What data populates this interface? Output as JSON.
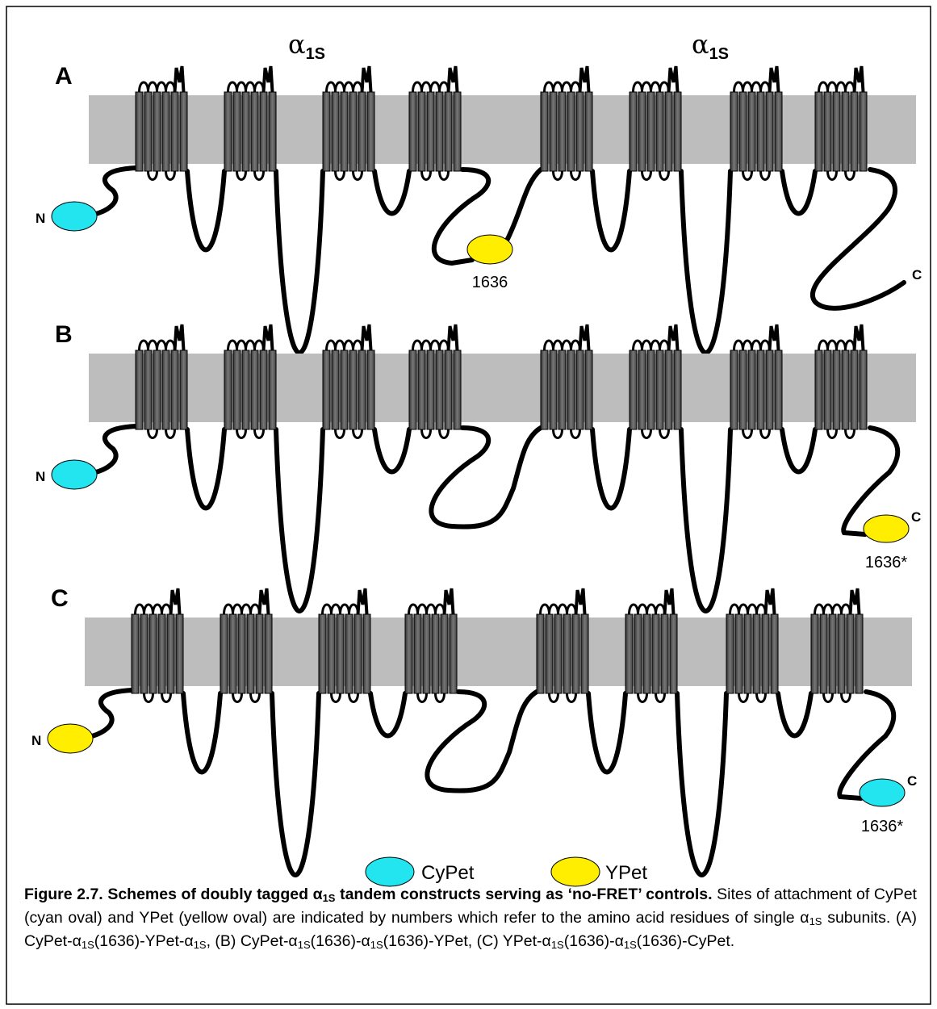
{
  "header": {
    "subunits": [
      {
        "symbol": "α",
        "subscript": "1S"
      },
      {
        "symbol": "α",
        "subscript": "1S"
      }
    ]
  },
  "panels": [
    {
      "letter": "A",
      "n_label": "N",
      "n_tag_color": "#22e5f0",
      "linker_tag": {
        "color": "#ffee00",
        "label": "1636"
      },
      "c_label": "C"
    },
    {
      "letter": "B",
      "n_label": "N",
      "n_tag_color": "#22e5f0",
      "c_tag": {
        "color": "#ffee00",
        "label": "1636*"
      },
      "c_label": "C"
    },
    {
      "letter": "C",
      "n_label": "N",
      "n_tag_color": "#ffee00",
      "c_tag": {
        "color": "#22e5f0",
        "label": "1636*"
      },
      "c_label": "C"
    }
  ],
  "legend": [
    {
      "name": "CyPet",
      "color": "#22e5f0"
    },
    {
      "name": "YPet",
      "color": "#ffee00"
    }
  ],
  "caption": {
    "runs": [
      "Figure 2.7. Schemes of doubly tagged α",
      "1S",
      " tandem constructs serving as ‘no-FRET’ controls.",
      " Sites of attachment of CyPet (cyan oval) and YPet (yellow oval) are indicated by numbers which refer to the amino acid residues of single α",
      "1S",
      " subunits. (A) CyPet-α",
      "1S",
      "(1636)-YPet-α",
      "1S",
      ", (B) CyPet-α",
      "1S",
      "(1636)-α",
      "1S",
      "(1636)-YPet, (C) YPet-α",
      "1S",
      "(1636)-α",
      "1S",
      "(1636)-CyPet."
    ]
  }
}
